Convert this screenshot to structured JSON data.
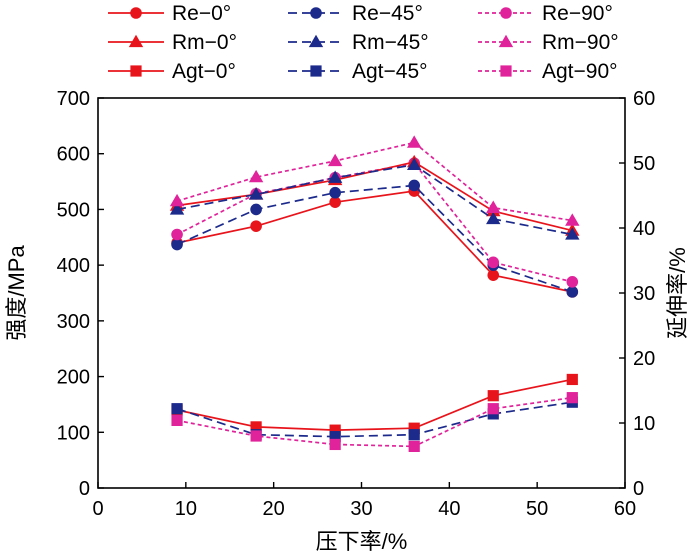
{
  "chart_data": {
    "type": "line",
    "xlabel": "压下率/%",
    "ylabel_left": "强度/MPa",
    "ylabel_right": "延伸率/%",
    "xlim": [
      0,
      60
    ],
    "ylim_left": [
      0,
      700
    ],
    "ylim_right": [
      0,
      60
    ],
    "xticks": [
      0,
      10,
      20,
      30,
      40,
      50,
      60
    ],
    "yticks_left": [
      0,
      100,
      200,
      300,
      400,
      500,
      600,
      700
    ],
    "yticks_right": [
      0,
      10,
      20,
      30,
      40,
      50,
      60
    ],
    "grid": false,
    "legend_position": "top",
    "x": [
      9,
      18,
      27,
      36,
      45,
      54
    ],
    "series": [
      {
        "name": "Re−0°",
        "axis": "left",
        "color": "#e8141c",
        "dash": "solid",
        "marker": "circle",
        "values": [
          440,
          470,
          513,
          533,
          382,
          352
        ]
      },
      {
        "name": "Re−45°",
        "axis": "left",
        "color": "#1c2a8c",
        "dash": "dashed",
        "marker": "circle",
        "values": [
          437,
          500,
          530,
          543,
          400,
          352
        ]
      },
      {
        "name": "Re−90°",
        "axis": "left",
        "color": "#e0239a",
        "dash": "dotted",
        "marker": "circle",
        "values": [
          455,
          528,
          557,
          583,
          405,
          370
        ]
      },
      {
        "name": "Rm−0°",
        "axis": "left",
        "color": "#e8141c",
        "dash": "solid",
        "marker": "triangle",
        "values": [
          507,
          527,
          553,
          585,
          497,
          462
        ]
      },
      {
        "name": "Rm−45°",
        "axis": "left",
        "color": "#1c2a8c",
        "dash": "dashed",
        "marker": "triangle",
        "values": [
          500,
          527,
          557,
          580,
          483,
          455
        ]
      },
      {
        "name": "Rm−90°",
        "axis": "left",
        "color": "#e0239a",
        "dash": "dotted",
        "marker": "triangle",
        "values": [
          515,
          558,
          587,
          620,
          503,
          480
        ]
      },
      {
        "name": "Agt−0°",
        "axis": "right",
        "color": "#e8141c",
        "dash": "solid",
        "marker": "square",
        "values": [
          12.0,
          9.4,
          8.9,
          9.2,
          14.2,
          16.7
        ]
      },
      {
        "name": "Agt−45°",
        "axis": "right",
        "color": "#1c2a8c",
        "dash": "dashed",
        "marker": "square",
        "values": [
          12.2,
          8.2,
          7.9,
          8.2,
          11.4,
          13.2
        ]
      },
      {
        "name": "Agt−90°",
        "axis": "right",
        "color": "#e0239a",
        "dash": "dotted",
        "marker": "square",
        "values": [
          10.4,
          8.0,
          6.7,
          6.4,
          12.2,
          13.9
        ]
      }
    ]
  }
}
